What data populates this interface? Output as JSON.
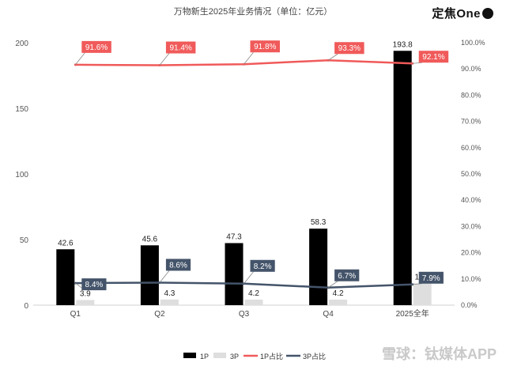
{
  "brand": {
    "text": "定焦One"
  },
  "watermark": {
    "text": "雪球：钛媒体APP"
  },
  "chart_data": {
    "type": "bar",
    "title": "万物新生2025年业务情况（单位：亿元）",
    "categories": [
      "Q1",
      "Q2",
      "Q3",
      "Q4",
      "2025全年"
    ],
    "series": [
      {
        "name": "1P",
        "type": "bar",
        "axis": "left",
        "color": "#000000",
        "values": [
          42.6,
          45.6,
          47.3,
          58.3,
          193.8
        ]
      },
      {
        "name": "3P",
        "type": "bar",
        "axis": "left",
        "color": "#dedede",
        "values": [
          3.9,
          4.3,
          4.2,
          4.2,
          16.7
        ]
      },
      {
        "name": "1P占比",
        "type": "line",
        "axis": "right",
        "color": "#f05a5a",
        "values": [
          91.6,
          91.4,
          91.8,
          93.3,
          92.1
        ]
      },
      {
        "name": "3P占比",
        "type": "line",
        "axis": "right",
        "color": "#44546a",
        "values": [
          8.4,
          8.6,
          8.2,
          6.7,
          7.9
        ]
      }
    ],
    "bar_labels": {
      "1P": [
        "42.6",
        "45.6",
        "47.3",
        "58.3",
        "193.8"
      ],
      "3P": [
        "3.9",
        "4.3",
        "4.2",
        "4.2",
        "16.7"
      ]
    },
    "line_labels": {
      "1P占比": [
        "91.6%",
        "91.4%",
        "91.8%",
        "93.3%",
        "92.1%"
      ],
      "3P占比": [
        "8.4%",
        "8.6%",
        "8.2%",
        "6.7%",
        "7.9%"
      ]
    },
    "y_left": {
      "lim": [
        0,
        200
      ],
      "ticks": [
        "0",
        "50",
        "100",
        "150",
        "200"
      ]
    },
    "y_right": {
      "lim": [
        0,
        100
      ],
      "ticks": [
        "0.0%",
        "10.0%",
        "20.0%",
        "30.0%",
        "40.0%",
        "50.0%",
        "60.0%",
        "70.0%",
        "80.0%",
        "90.0%",
        "100.0%"
      ]
    },
    "grid": false,
    "legend_position": "bottom"
  }
}
